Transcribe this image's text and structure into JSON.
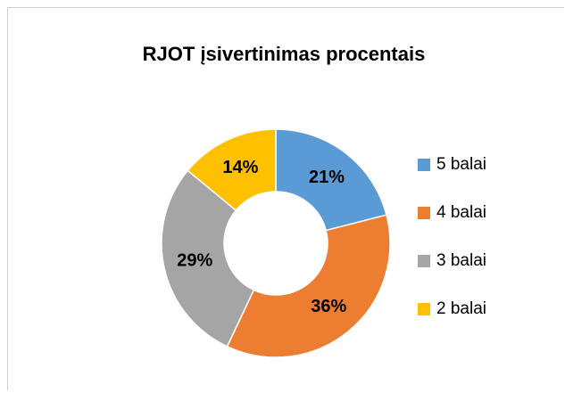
{
  "chart_data": {
    "type": "donut",
    "title": "RJOT įsivertinimas procentais",
    "categories": [
      "5 balai",
      "4 balai",
      "3 balai",
      "2 balai"
    ],
    "values": [
      21,
      36,
      29,
      14
    ],
    "value_labels": [
      "21%",
      "36%",
      "29%",
      "14%"
    ],
    "colors": [
      "#5b9bd5",
      "#ed7d31",
      "#a5a5a5",
      "#ffc000"
    ],
    "legend": "right"
  }
}
